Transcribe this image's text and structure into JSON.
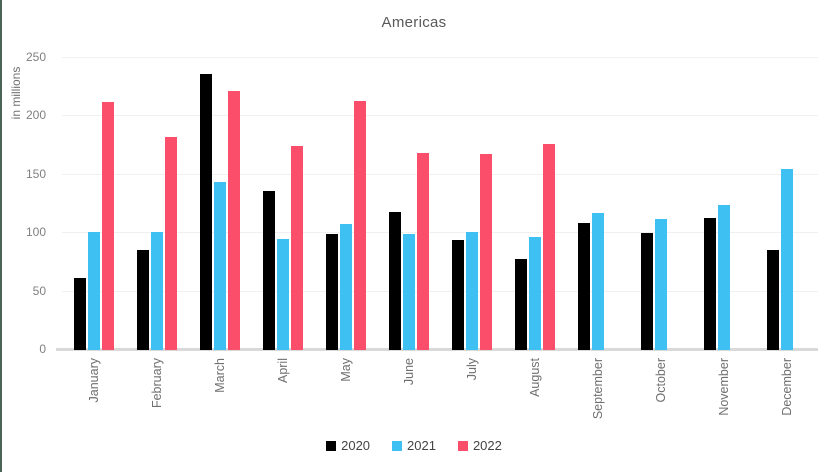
{
  "page": {
    "background": "#ffffff",
    "left_edge_color": "#4b6455",
    "grid_color": "#f0f0f0",
    "axis_line_color": "#d9d9d9",
    "text_color": "#707070"
  },
  "chart_data": {
    "type": "bar",
    "title": "Americas",
    "ylabel": "in millions",
    "xlabel": "",
    "categories": [
      "January",
      "February",
      "March",
      "April",
      "May",
      "June",
      "July",
      "August",
      "September",
      "October",
      "November",
      "December"
    ],
    "series": [
      {
        "name": "2020",
        "color": "#000000",
        "values": [
          62,
          86,
          236,
          136,
          99,
          118,
          94,
          78,
          109,
          100,
          113,
          86
        ]
      },
      {
        "name": "2021",
        "color": "#3ec0f2",
        "values": [
          101,
          101,
          144,
          95,
          108,
          99,
          101,
          97,
          117,
          112,
          124,
          155
        ]
      },
      {
        "name": "2022",
        "color": "#fb4e6b",
        "values": [
          212,
          182,
          222,
          175,
          213,
          169,
          168,
          176,
          null,
          null,
          null,
          null
        ]
      }
    ],
    "ylim": [
      0,
      250
    ],
    "yticks": [
      0,
      50,
      100,
      150,
      200,
      250
    ],
    "grid": true,
    "legend_position": "bottom"
  }
}
